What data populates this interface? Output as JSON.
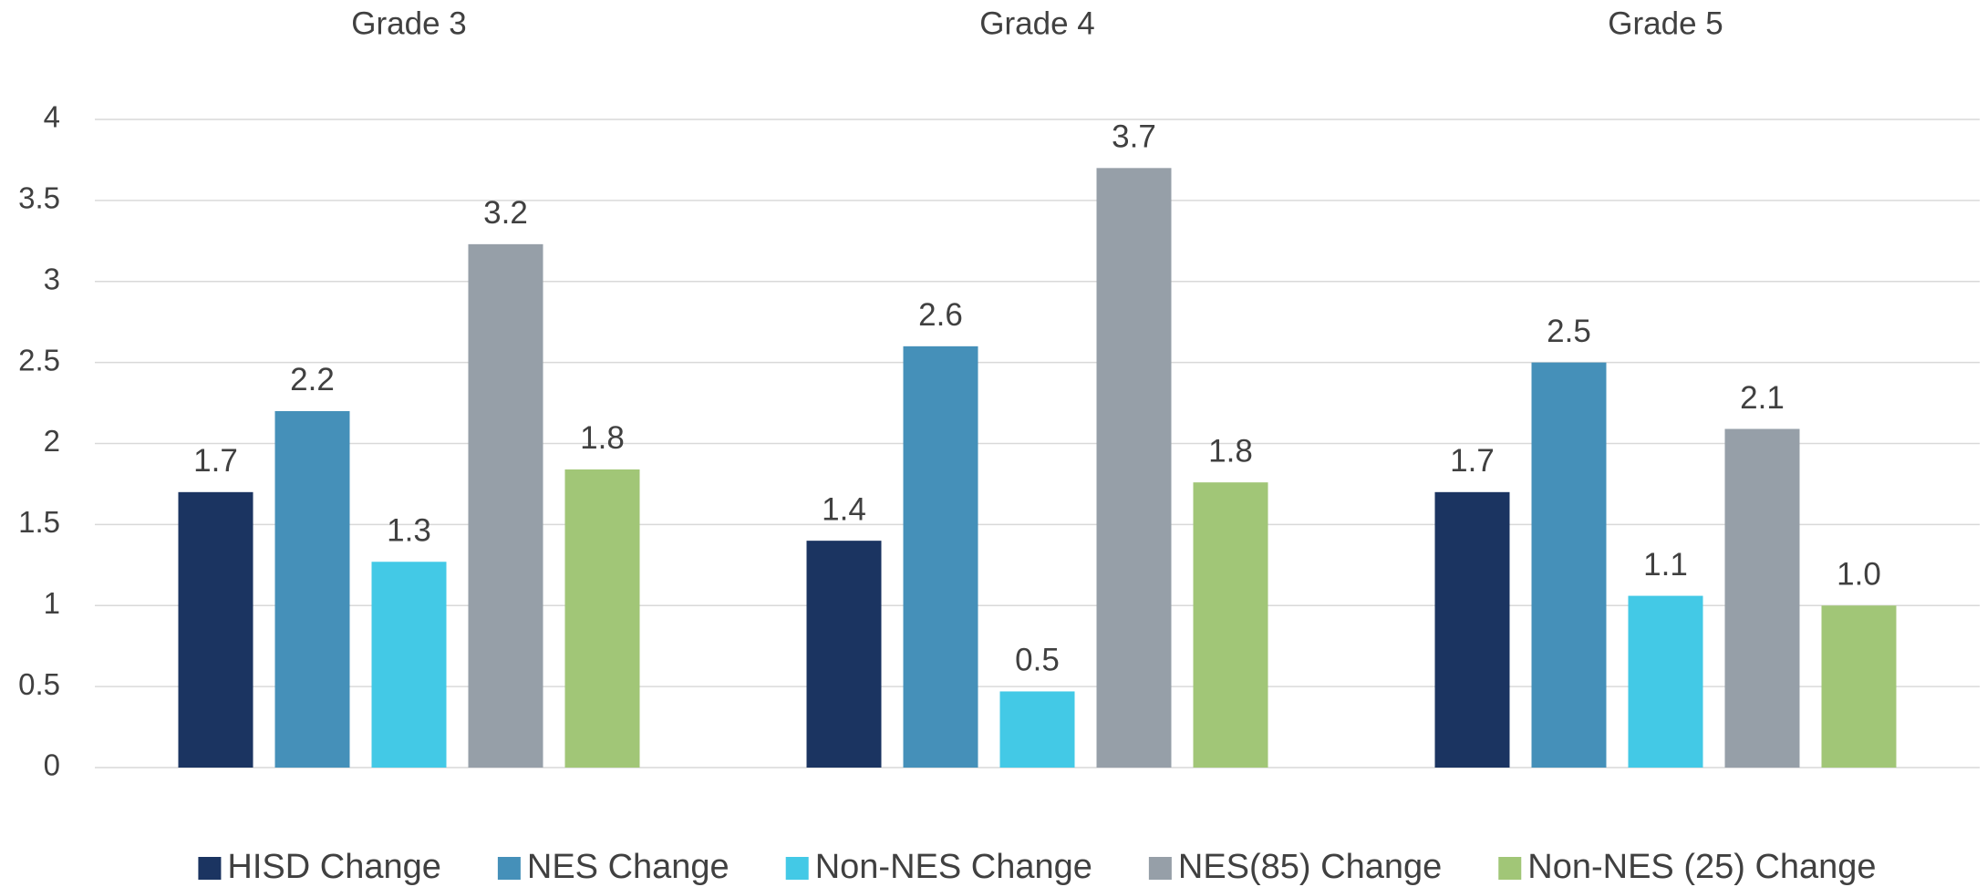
{
  "chart_data": {
    "type": "bar",
    "categories": [
      "Grade 3",
      "Grade 4",
      "Grade 5"
    ],
    "series": [
      {
        "name": "HISD Change",
        "color": "#1b3461",
        "values": [
          1.7,
          1.4,
          1.7
        ]
      },
      {
        "name": "NES Change",
        "color": "#4590b9",
        "values": [
          2.2,
          2.6,
          2.5
        ]
      },
      {
        "name": "Non-NES Change",
        "color": "#43c9e6",
        "values": [
          1.27,
          0.47,
          1.06
        ],
        "value_labels": [
          "1.3",
          "0.5",
          "1.1"
        ]
      },
      {
        "name": "NES(85) Change",
        "color": "#969fa8",
        "values": [
          3.23,
          3.7,
          2.09
        ],
        "value_labels": [
          "3.2",
          "3.7",
          "2.1"
        ]
      },
      {
        "name": "Non-NES (25) Change",
        "color": "#a1c677",
        "values": [
          1.84,
          1.76,
          1.0
        ],
        "value_labels": [
          "1.8",
          "1.8",
          "1.0"
        ]
      }
    ],
    "ylim": [
      0,
      4
    ],
    "yticks": [
      0,
      0.5,
      1,
      1.5,
      2,
      2.5,
      3,
      3.5,
      4
    ],
    "grid": true,
    "legend": "bottom"
  }
}
